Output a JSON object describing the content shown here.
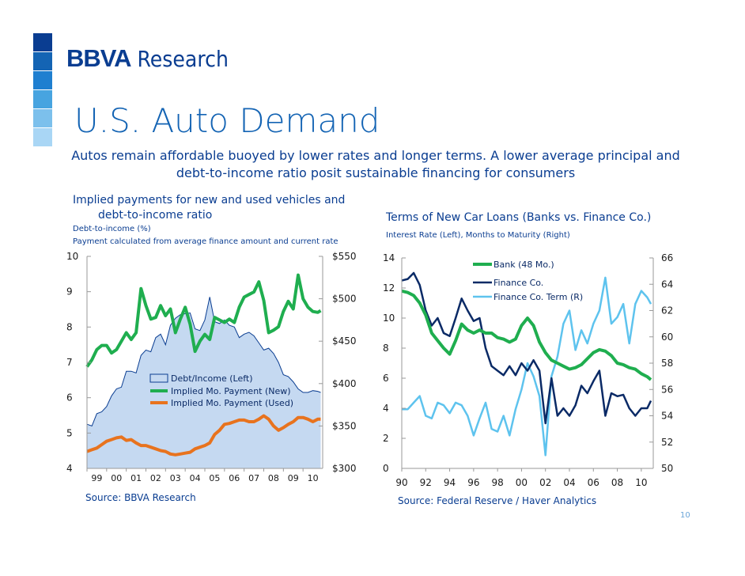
{
  "brand": {
    "name": "BBVA",
    "division": "Research",
    "square_colors": [
      "#0a3d91",
      "#1464b4",
      "#1f7fd0",
      "#47a4e0",
      "#7cc0ec",
      "#a9d6f5",
      "#cfe8fa"
    ]
  },
  "title": "U.S. Auto Demand",
  "subtitle": "Autos remain affordable buoyed by lower rates and longer terms. A lower average principal and debt-to-income ratio posit sustainable financing for consumers",
  "page_number": "10",
  "chart_data": [
    {
      "type": "area",
      "title_line1": "Implied payments for new and used vehicles and",
      "title_line2": "debt-to-income ratio",
      "subtitle1": "Debt-to-income (%)",
      "subtitle2": "Payment calculated from average finance amount and current rate",
      "source": "Source: BBVA Research",
      "x_range": [
        1999,
        2011
      ],
      "x_ticks": [
        "99",
        "00",
        "01",
        "02",
        "03",
        "04",
        "05",
        "06",
        "07",
        "08",
        "09",
        "10"
      ],
      "y_left": {
        "range": [
          4,
          10
        ],
        "ticks": [
          "4",
          "5",
          "6",
          "7",
          "8",
          "9",
          "10"
        ]
      },
      "y_right": {
        "range": [
          300,
          550
        ],
        "ticks": [
          "$300",
          "$350",
          "$400",
          "$450",
          "$500",
          "$550"
        ]
      },
      "legend": [
        "Debt/Income (Left)",
        "Implied Mo. Payment (New)",
        "Implied Mo. Payment (Used)"
      ],
      "colors": {
        "area_fill": "#c5d9f1",
        "area_line": "#0a3d91",
        "new": "#1fae4f",
        "used": "#e8731e"
      },
      "series": [
        {
          "name": "Debt/Income (Left)",
          "axis": "left",
          "x": [
            1999.0,
            1999.25,
            1999.5,
            1999.75,
            2000.0,
            2000.25,
            2000.5,
            2000.75,
            2001.0,
            2001.25,
            2001.5,
            2001.75,
            2002.0,
            2002.25,
            2002.5,
            2002.75,
            2003.0,
            2003.25,
            2003.5,
            2003.75,
            2004.0,
            2004.25,
            2004.5,
            2004.75,
            2005.0,
            2005.25,
            2005.5,
            2005.75,
            2006.0,
            2006.25,
            2006.5,
            2006.75,
            2007.0,
            2007.25,
            2007.5,
            2007.75,
            2008.0,
            2008.25,
            2008.5,
            2008.75,
            2009.0,
            2009.25,
            2009.5,
            2009.75,
            2010.0,
            2010.25,
            2010.5,
            2010.75,
            2010.9
          ],
          "values": [
            5.25,
            5.2,
            5.55,
            5.6,
            5.75,
            6.05,
            6.25,
            6.3,
            6.75,
            6.75,
            6.7,
            7.2,
            7.35,
            7.3,
            7.7,
            7.8,
            7.5,
            8.05,
            8.25,
            8.35,
            8.38,
            8.4,
            7.95,
            7.9,
            8.2,
            8.85,
            8.15,
            8.1,
            8.2,
            8.05,
            8.0,
            7.7,
            7.8,
            7.85,
            7.75,
            7.55,
            7.35,
            7.4,
            7.25,
            7.0,
            6.65,
            6.6,
            6.45,
            6.25,
            6.15,
            6.15,
            6.2,
            6.18,
            6.15
          ]
        },
        {
          "name": "Implied Mo. Payment (New)",
          "axis": "right",
          "x": [
            1999.0,
            1999.25,
            1999.5,
            1999.75,
            2000.0,
            2000.25,
            2000.5,
            2000.75,
            2001.0,
            2001.25,
            2001.5,
            2001.75,
            2002.0,
            2002.25,
            2002.5,
            2002.75,
            2003.0,
            2003.25,
            2003.5,
            2003.75,
            2004.0,
            2004.25,
            2004.5,
            2004.75,
            2005.0,
            2005.25,
            2005.5,
            2005.75,
            2006.0,
            2006.25,
            2006.5,
            2006.75,
            2007.0,
            2007.25,
            2007.5,
            2007.75,
            2008.0,
            2008.25,
            2008.5,
            2008.75,
            2009.0,
            2009.25,
            2009.5,
            2009.75,
            2010.0,
            2010.25,
            2010.5,
            2010.75,
            2010.9
          ],
          "values": [
            420,
            428,
            440,
            445,
            445,
            436,
            440,
            450,
            460,
            452,
            460,
            512,
            492,
            476,
            478,
            492,
            480,
            488,
            460,
            476,
            490,
            470,
            438,
            450,
            458,
            452,
            478,
            475,
            472,
            476,
            472,
            490,
            502,
            505,
            508,
            520,
            498,
            460,
            463,
            467,
            485,
            497,
            488,
            528,
            500,
            490,
            485,
            484,
            486
          ]
        },
        {
          "name": "Implied Mo. Payment (Used)",
          "axis": "right",
          "x": [
            1999.0,
            1999.25,
            1999.5,
            1999.75,
            2000.0,
            2000.25,
            2000.5,
            2000.75,
            2001.0,
            2001.25,
            2001.5,
            2001.75,
            2002.0,
            2002.25,
            2002.5,
            2002.75,
            2003.0,
            2003.25,
            2003.5,
            2003.75,
            2004.0,
            2004.25,
            2004.5,
            2004.75,
            2005.0,
            2005.25,
            2005.5,
            2005.75,
            2006.0,
            2006.25,
            2006.5,
            2006.75,
            2007.0,
            2007.25,
            2007.5,
            2007.75,
            2008.0,
            2008.25,
            2008.5,
            2008.75,
            2009.0,
            2009.25,
            2009.5,
            2009.75,
            2010.0,
            2010.25,
            2010.5,
            2010.75,
            2010.9
          ],
          "values": [
            320,
            322,
            324,
            328,
            332,
            334,
            336,
            337,
            333,
            334,
            330,
            327,
            327,
            325,
            323,
            321,
            320,
            317,
            316,
            317,
            318,
            319,
            323,
            325,
            327,
            330,
            340,
            345,
            352,
            353,
            355,
            357,
            357,
            355,
            355,
            358,
            362,
            358,
            350,
            345,
            348,
            352,
            355,
            360,
            360,
            358,
            355,
            358,
            358
          ]
        }
      ]
    },
    {
      "type": "line",
      "title": "Terms of New Car Loans (Banks vs. Finance Co.)",
      "subtitle": "Interest Rate (Left), Months to Maturity (Right)",
      "source": "Source: Federal Reserve / Haver Analytics",
      "x_range": [
        1990,
        2011
      ],
      "x_ticks": [
        "90",
        "92",
        "94",
        "96",
        "98",
        "00",
        "02",
        "04",
        "06",
        "08",
        "10"
      ],
      "y_left": {
        "range": [
          0,
          14
        ],
        "ticks": [
          "0",
          "2",
          "4",
          "6",
          "8",
          "10",
          "12",
          "14"
        ]
      },
      "y_right": {
        "range": [
          50,
          66
        ],
        "ticks": [
          "50",
          "52",
          "54",
          "56",
          "58",
          "60",
          "62",
          "64",
          "66"
        ]
      },
      "legend": [
        "Bank (48 Mo.)",
        "Finance Co.",
        "Finance Co. Term (R)"
      ],
      "colors": {
        "bank": "#1fae4f",
        "finance": "#0a2a66",
        "term": "#5ec3ee"
      },
      "series": [
        {
          "name": "Bank (48 Mo.)",
          "axis": "left",
          "x": [
            1990,
            1990.5,
            1991,
            1991.5,
            1992,
            1992.5,
            1993,
            1993.5,
            1994,
            1994.5,
            1995,
            1995.5,
            1996,
            1996.5,
            1997,
            1997.5,
            1998,
            1998.5,
            1999,
            1999.5,
            2000,
            2000.5,
            2001,
            2001.5,
            2002,
            2002.5,
            2003,
            2003.5,
            2004,
            2004.5,
            2005,
            2005.5,
            2006,
            2006.5,
            2007,
            2007.5,
            2008,
            2008.5,
            2009,
            2009.5,
            2010,
            2010.5,
            2010.8
          ],
          "values": [
            11.8,
            11.7,
            11.5,
            11.0,
            10.2,
            9.0,
            8.5,
            8.0,
            7.6,
            8.5,
            9.6,
            9.2,
            9.0,
            9.2,
            9.0,
            9.0,
            8.7,
            8.6,
            8.4,
            8.6,
            9.5,
            10.0,
            9.5,
            8.4,
            7.7,
            7.2,
            7.0,
            6.8,
            6.6,
            6.7,
            6.9,
            7.3,
            7.7,
            7.9,
            7.8,
            7.5,
            7.0,
            6.9,
            6.7,
            6.6,
            6.3,
            6.1,
            5.9
          ]
        },
        {
          "name": "Finance Co.",
          "axis": "left",
          "x": [
            1990,
            1990.5,
            1991,
            1991.5,
            1992,
            1992.5,
            1993,
            1993.5,
            1994,
            1994.5,
            1995,
            1995.5,
            1996,
            1996.5,
            1997,
            1997.5,
            1998,
            1998.5,
            1999,
            1999.5,
            2000,
            2000.5,
            2001,
            2001.5,
            2002,
            2002.5,
            2003,
            2003.5,
            2004,
            2004.5,
            2005,
            2005.5,
            2006,
            2006.5,
            2007,
            2007.5,
            2008,
            2008.5,
            2009,
            2009.5,
            2010,
            2010.5,
            2010.8
          ],
          "values": [
            12.5,
            12.6,
            13.0,
            12.2,
            10.5,
            9.5,
            10.0,
            9.0,
            8.8,
            10.0,
            11.3,
            10.5,
            9.8,
            10.0,
            8.0,
            6.8,
            6.5,
            6.2,
            6.8,
            6.2,
            7.0,
            6.5,
            7.2,
            6.5,
            3.0,
            6.0,
            3.5,
            4.0,
            3.5,
            4.2,
            5.5,
            5.0,
            5.8,
            6.5,
            3.5,
            5.0,
            4.8,
            4.9,
            4.0,
            3.5,
            4.0,
            4.0,
            4.5
          ]
        },
        {
          "name": "Finance Co. Term (R)",
          "axis": "right",
          "x": [
            1990,
            1990.5,
            1991,
            1991.5,
            1992,
            1992.5,
            1993,
            1993.5,
            1994,
            1994.5,
            1995,
            1995.5,
            1996,
            1996.5,
            1997,
            1997.5,
            1998,
            1998.5,
            1999,
            1999.5,
            2000,
            2000.5,
            2001,
            2001.5,
            2002,
            2002.5,
            2003,
            2003.5,
            2004,
            2004.5,
            2005,
            2005.5,
            2006,
            2006.5,
            2007,
            2007.5,
            2008,
            2008.5,
            2009,
            2009.5,
            2010,
            2010.5,
            2010.8
          ],
          "values": [
            54.5,
            54.5,
            55.0,
            55.5,
            54.0,
            53.8,
            55.0,
            54.8,
            54.2,
            55.0,
            54.8,
            54.0,
            52.5,
            53.8,
            55.0,
            53.0,
            52.8,
            54.0,
            52.5,
            54.5,
            56.0,
            58.0,
            57.0,
            55.5,
            51.0,
            57.0,
            58.5,
            61.0,
            62.0,
            59.0,
            60.5,
            59.5,
            61.0,
            62.0,
            64.5,
            61.0,
            61.5,
            62.5,
            59.5,
            62.5,
            63.5,
            63.0,
            62.5
          ]
        }
      ]
    }
  ]
}
